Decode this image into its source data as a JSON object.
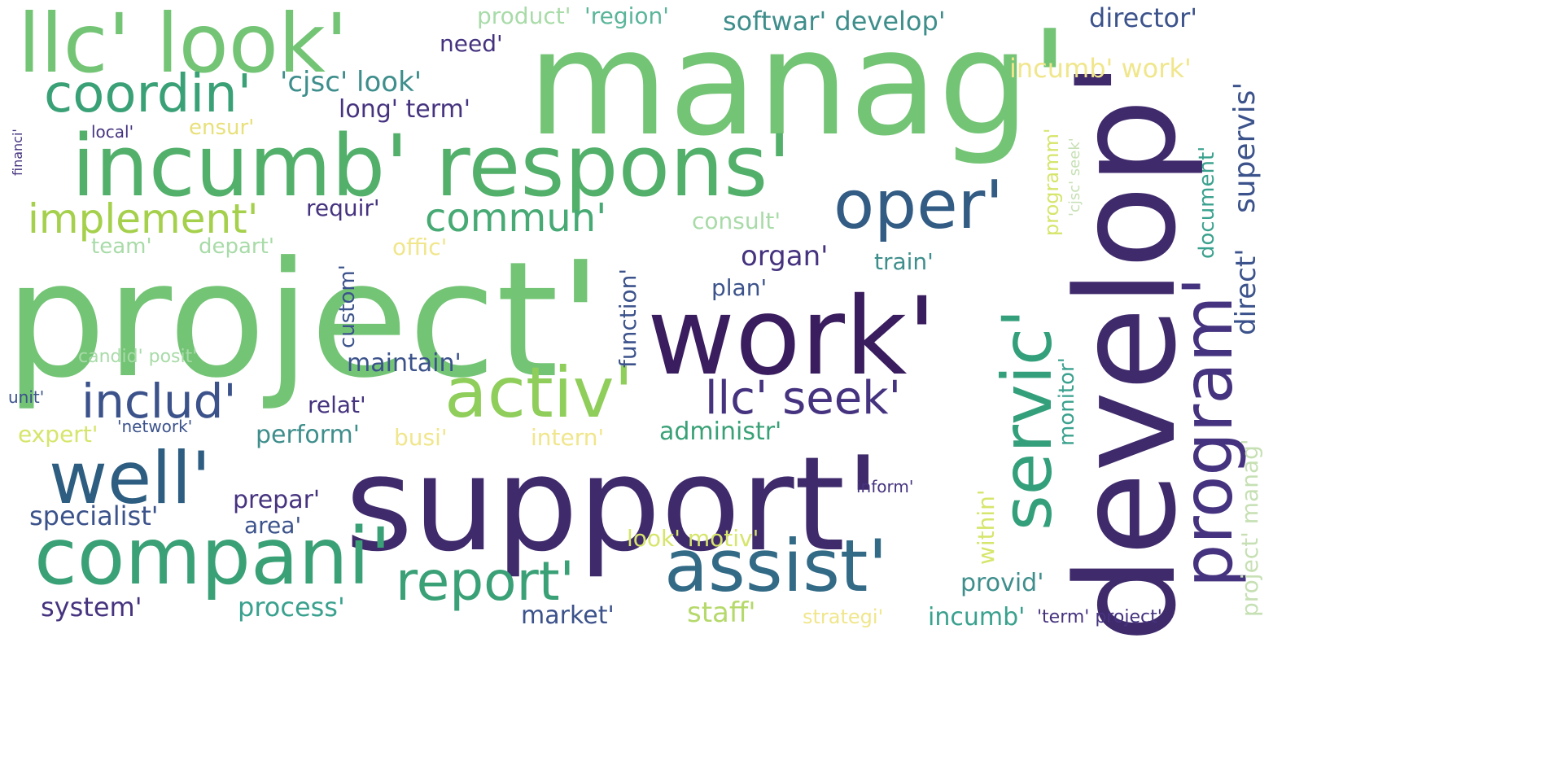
{
  "words": [
    {
      "text": "manag'",
      "color": "#74c476"
    },
    {
      "text": "project'",
      "color": "#74c476"
    },
    {
      "text": "support'",
      "color": "#3f2a6b"
    },
    {
      "text": "work'",
      "color": "#3a1d5e"
    },
    {
      "text": "develop'",
      "color": "#3f2a6b"
    },
    {
      "text": "llc' look'",
      "color": "#74c476"
    },
    {
      "text": "incumb' respons'",
      "color": "#52b06b"
    },
    {
      "text": "compani'",
      "color": "#3aa177"
    },
    {
      "text": "activ'",
      "color": "#8fce5a"
    },
    {
      "text": "assist'",
      "color": "#336b87"
    },
    {
      "text": "well'",
      "color": "#2d5d80"
    },
    {
      "text": "oper'",
      "color": "#335c84"
    },
    {
      "text": "servic'",
      "color": "#34a07b"
    },
    {
      "text": "program'",
      "color": "#46337f"
    },
    {
      "text": "coordin'",
      "color": "#3aa177"
    },
    {
      "text": "report'",
      "color": "#3aa177"
    },
    {
      "text": "includ'",
      "color": "#3b528b"
    },
    {
      "text": "llc' seek'",
      "color": "#46337f"
    },
    {
      "text": "implement'",
      "color": "#a5d04c"
    },
    {
      "text": "commun'",
      "color": "#47aa74"
    },
    {
      "text": "'cjsc' look'",
      "color": "#3e8e8c"
    },
    {
      "text": "product'",
      "color": "#a8dba8"
    },
    {
      "text": "'region'",
      "color": "#5ab59a"
    },
    {
      "text": "softwar' develop'",
      "color": "#3e8e8c"
    },
    {
      "text": "director'",
      "color": "#3b528b"
    },
    {
      "text": "need'",
      "color": "#46337f"
    },
    {
      "text": "incumb' work'",
      "color": "#f0e68c"
    },
    {
      "text": "supervis'",
      "color": "#3b528b"
    },
    {
      "text": "long' term'",
      "color": "#46337f"
    },
    {
      "text": "ensur'",
      "color": "#e8e07a"
    },
    {
      "text": "local'",
      "color": "#46337f"
    },
    {
      "text": "financi'",
      "color": "#46337f"
    },
    {
      "text": "requir'",
      "color": "#46337f"
    },
    {
      "text": "consult'",
      "color": "#a8dba8"
    },
    {
      "text": "programm'",
      "color": "#d6e56b"
    },
    {
      "text": "'cjsc' seek'",
      "color": "#c6e0b4"
    },
    {
      "text": "document'",
      "color": "#3aa18e"
    },
    {
      "text": "direct'",
      "color": "#3b528b"
    },
    {
      "text": "team'",
      "color": "#a8dba8"
    },
    {
      "text": "depart'",
      "color": "#a8dba8"
    },
    {
      "text": "offic'",
      "color": "#f0e68c"
    },
    {
      "text": "organ'",
      "color": "#46337f"
    },
    {
      "text": "train'",
      "color": "#3e8e8c"
    },
    {
      "text": "function'",
      "color": "#3b528b"
    },
    {
      "text": "custom'",
      "color": "#3b528b"
    },
    {
      "text": "plan'",
      "color": "#3b528b"
    },
    {
      "text": "candid' posit'",
      "color": "#a8dba8"
    },
    {
      "text": "maintain'",
      "color": "#3b528b"
    },
    {
      "text": "monitor'",
      "color": "#3aa18e"
    },
    {
      "text": "project' manag'",
      "color": "#c6e0b4"
    },
    {
      "text": "unit'",
      "color": "#3b528b"
    },
    {
      "text": "relat'",
      "color": "#46337f"
    },
    {
      "text": "'network'",
      "color": "#3b528b"
    },
    {
      "text": "expert'",
      "color": "#d6e56b"
    },
    {
      "text": "perform'",
      "color": "#3e8e8c"
    },
    {
      "text": "busi'",
      "color": "#f0e68c"
    },
    {
      "text": "intern'",
      "color": "#f0e68c"
    },
    {
      "text": "administr'",
      "color": "#3aa177"
    },
    {
      "text": "inform'",
      "color": "#46337f"
    },
    {
      "text": "within'",
      "color": "#d6e56b"
    },
    {
      "text": "prepar'",
      "color": "#46337f"
    },
    {
      "text": "specialist'",
      "color": "#3b528b"
    },
    {
      "text": "area'",
      "color": "#3b528b"
    },
    {
      "text": "look' motiv'",
      "color": "#d6e56b"
    },
    {
      "text": "provid'",
      "color": "#3e8e8c"
    },
    {
      "text": "system'",
      "color": "#46337f"
    },
    {
      "text": "process'",
      "color": "#3aa18e"
    },
    {
      "text": "market'",
      "color": "#3b528b"
    },
    {
      "text": "staff'",
      "color": "#b5d96b"
    },
    {
      "text": "strategi'",
      "color": "#f0e68c"
    },
    {
      "text": "incumb'",
      "color": "#3aa18e"
    },
    {
      "text": "'term' project'",
      "color": "#46337f"
    }
  ]
}
